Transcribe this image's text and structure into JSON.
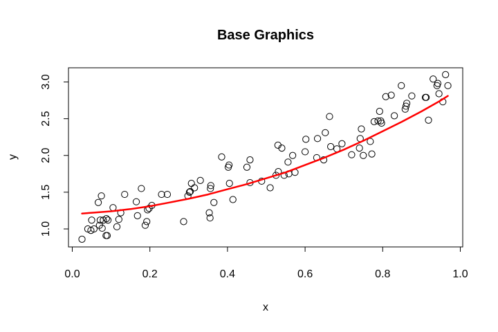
{
  "chart_data": {
    "type": "scatter",
    "title": "Base Graphics",
    "xlabel": "x",
    "ylabel": "y",
    "xlim": [
      0.0,
      1.0
    ],
    "ylim": [
      0.75,
      3.2
    ],
    "xticks": [
      0.0,
      0.2,
      0.4,
      0.6,
      0.8,
      1.0
    ],
    "xtick_labels": [
      "0.0",
      "0.2",
      "0.4",
      "0.6",
      "0.8",
      "1.0"
    ],
    "yticks": [
      1.0,
      1.5,
      2.0,
      2.5,
      3.0
    ],
    "ytick_labels": [
      "1.0",
      "1.5",
      "2.0",
      "2.5",
      "3.0"
    ],
    "grid": false,
    "colors": {
      "points": "#000000",
      "fit_line": "#ff0000"
    },
    "series": [
      {
        "kind": "points",
        "x": [
          0.025,
          0.04,
          0.048,
          0.05,
          0.056,
          0.067,
          0.07,
          0.072,
          0.075,
          0.077,
          0.08,
          0.087,
          0.088,
          0.09,
          0.092,
          0.105,
          0.115,
          0.12,
          0.125,
          0.135,
          0.165,
          0.168,
          0.178,
          0.188,
          0.192,
          0.194,
          0.198,
          0.205,
          0.23,
          0.245,
          0.287,
          0.298,
          0.302,
          0.304,
          0.307,
          0.315,
          0.33,
          0.353,
          0.355,
          0.356,
          0.357,
          0.365,
          0.385,
          0.402,
          0.404,
          0.405,
          0.414,
          0.45,
          0.458,
          0.458,
          0.488,
          0.51,
          0.525,
          0.53,
          0.531,
          0.54,
          0.546,
          0.556,
          0.558,
          0.568,
          0.574,
          0.6,
          0.602,
          0.63,
          0.632,
          0.648,
          0.652,
          0.663,
          0.666,
          0.682,
          0.695,
          0.72,
          0.74,
          0.742,
          0.745,
          0.75,
          0.768,
          0.772,
          0.778,
          0.788,
          0.792,
          0.795,
          0.797,
          0.808,
          0.822,
          0.83,
          0.848,
          0.858,
          0.86,
          0.862,
          0.875,
          0.91,
          0.912,
          0.918,
          0.93,
          0.94,
          0.942,
          0.945,
          0.955,
          0.962,
          0.968
        ],
        "y": [
          0.86,
          1.0,
          0.98,
          1.12,
          1.0,
          1.36,
          1.05,
          1.12,
          1.45,
          1.01,
          1.12,
          0.91,
          1.14,
          0.91,
          1.12,
          1.29,
          1.03,
          1.13,
          1.22,
          1.47,
          1.37,
          1.18,
          1.55,
          1.05,
          1.1,
          1.26,
          1.28,
          1.32,
          1.47,
          1.47,
          1.1,
          1.45,
          1.5,
          1.51,
          1.62,
          1.56,
          1.66,
          1.22,
          1.15,
          1.55,
          1.59,
          1.36,
          1.98,
          1.84,
          1.87,
          1.62,
          1.4,
          1.84,
          1.63,
          1.94,
          1.65,
          1.56,
          1.73,
          2.14,
          1.78,
          2.1,
          1.73,
          1.91,
          1.75,
          2.0,
          1.77,
          2.05,
          2.22,
          1.97,
          2.23,
          1.94,
          2.31,
          2.53,
          2.12,
          2.09,
          2.16,
          2.01,
          2.1,
          2.23,
          2.36,
          2.0,
          2.19,
          2.02,
          2.46,
          2.47,
          2.6,
          2.47,
          2.44,
          2.8,
          2.82,
          2.54,
          2.95,
          2.63,
          2.67,
          2.71,
          2.81,
          2.79,
          2.79,
          2.48,
          3.04,
          2.95,
          2.98,
          2.84,
          2.73,
          3.1,
          2.95
        ]
      },
      {
        "kind": "fit_line",
        "x": [
          0.025,
          0.05,
          0.1,
          0.15,
          0.2,
          0.25,
          0.3,
          0.35,
          0.4,
          0.45,
          0.5,
          0.55,
          0.6,
          0.65,
          0.7,
          0.75,
          0.8,
          0.85,
          0.9,
          0.95,
          0.968
        ],
        "y": [
          1.21,
          1.22,
          1.24,
          1.27,
          1.31,
          1.36,
          1.41,
          1.47,
          1.54,
          1.61,
          1.69,
          1.77,
          1.87,
          1.97,
          2.08,
          2.2,
          2.33,
          2.46,
          2.6,
          2.75,
          2.81
        ]
      }
    ]
  }
}
